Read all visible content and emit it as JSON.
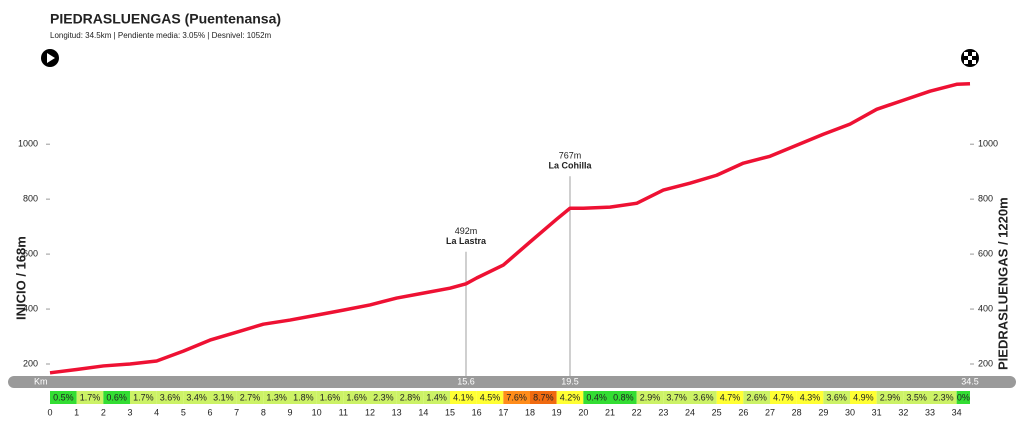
{
  "chart_data": {
    "type": "line",
    "title": "PIEDRASLUENGAS  (Puentenansa)",
    "subtitle": "Longitud: 34.5km | Pendiente media: 3.05% | Desnivel: 1052m",
    "y_label_left": "INICIO / 168m",
    "y_label_right": "PIEDRASLUENGAS / 1220m",
    "x_label": "Km",
    "x": [
      0,
      1,
      2,
      3,
      4,
      5,
      6,
      7,
      8,
      9,
      10,
      11,
      12,
      13,
      14,
      15,
      15.6,
      16,
      17,
      18,
      19,
      19.5,
      20,
      21,
      22,
      23,
      24,
      25,
      26,
      27,
      28,
      29,
      30,
      31,
      32,
      33,
      34,
      34.5
    ],
    "series": [
      {
        "color": "#ee1133",
        "values": [
          168,
          180,
          193,
          200,
          211,
          247,
          287,
          316,
          345,
          360,
          378,
          396,
          415,
          440,
          458,
          476,
          492,
          513,
          560,
          644,
          727,
          767,
          767,
          771,
          785,
          833,
          858,
          887,
          931,
          956,
          996,
          1036,
          1073,
          1127,
          1160,
          1193,
          1218,
          1220
        ]
      }
    ],
    "xlim": [
      0,
      34.5
    ],
    "xticks": [
      0,
      1,
      2,
      3,
      4,
      5,
      6,
      7,
      8,
      9,
      10,
      11,
      12,
      13,
      14,
      15,
      16,
      17,
      18,
      19,
      20,
      21,
      22,
      23,
      24,
      25,
      26,
      27,
      28,
      29,
      30,
      31,
      32,
      33,
      34
    ],
    "ylim": [
      150,
      1270
    ],
    "yticks": [
      200,
      400,
      600,
      800,
      1000
    ],
    "annotations": [
      {
        "x": 15.6,
        "elevation": "492m",
        "name": "La Lastra"
      },
      {
        "x": 19.5,
        "elevation": "767m",
        "name": "La Cohilla"
      }
    ],
    "gradients": {
      "values": [
        0.5,
        1.7,
        0.6,
        1.7,
        3.6,
        3.4,
        3.1,
        2.7,
        1.3,
        1.8,
        1.6,
        1.6,
        2.3,
        2.8,
        1.4,
        4.1,
        4.5,
        7.6,
        8.7,
        4.2,
        0.4,
        0.8,
        2.9,
        3.7,
        3.6,
        4.7,
        2.6,
        4.7,
        4.3,
        3.6,
        4.9,
        2.9,
        3.5,
        2.3,
        0
      ],
      "value_labels": [
        "0.5%",
        "1.7%",
        "0.6%",
        "1.7%",
        "3.6%",
        "3.4%",
        "3.1%",
        "2.7%",
        "1.3%",
        "1.8%",
        "1.6%",
        "1.6%",
        "2.3%",
        "2.8%",
        "1.4%",
        "4.1%",
        "4.5%",
        "7.6%",
        "8.7%",
        "4.2%",
        "0.4%",
        "0.8%",
        "2.9%",
        "3.7%",
        "3.6%",
        "4.7%",
        "2.6%",
        "4.7%",
        "4.3%",
        "3.6%",
        "4.9%",
        "2.9%",
        "3.5%",
        "2.3%",
        "0%"
      ],
      "colors": [
        "#33dd33",
        "#ccf266",
        "#33dd33",
        "#ccf266",
        "#ccf266",
        "#ccf266",
        "#ccf266",
        "#ccf266",
        "#ccf266",
        "#ccf266",
        "#ccf266",
        "#ccf266",
        "#ccf266",
        "#ccf266",
        "#ccf266",
        "#ffff33",
        "#ffff33",
        "#ff8c1a",
        "#f06a10",
        "#ffff33",
        "#33dd33",
        "#33dd33",
        "#ccf266",
        "#ccf266",
        "#ccf266",
        "#ffff33",
        "#ccf266",
        "#ffff33",
        "#ffff33",
        "#ccf266",
        "#ffff33",
        "#ccf266",
        "#ccf266",
        "#ccf266",
        "#33dd33"
      ]
    }
  }
}
